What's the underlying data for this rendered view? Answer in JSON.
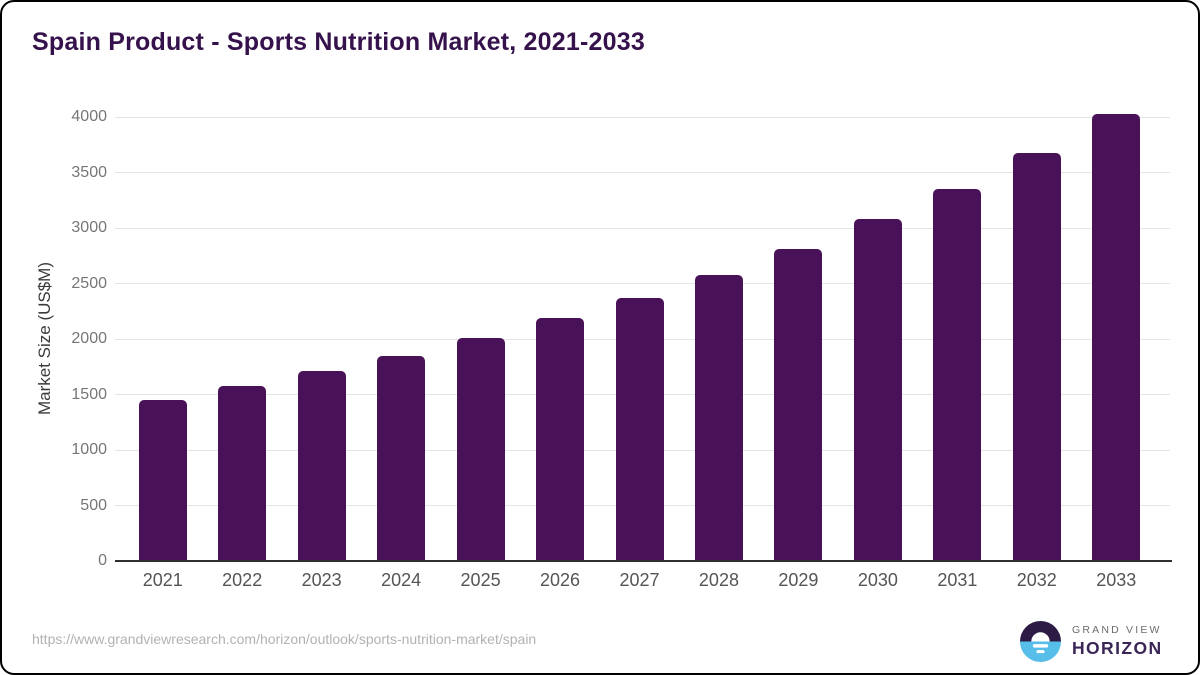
{
  "title": "Spain Product - Sports Nutrition Market, 2021-2033",
  "colors": {
    "bar": "#491157",
    "title": "#35124b",
    "gridline": "#e5e5e8",
    "axis_line": "#2f2f2f",
    "y_tick_text": "#767676",
    "x_tick_text": "#555555",
    "url_text": "#b2b2b2",
    "logo_dark_purple": "#2d1b45",
    "logo_blue": "#57bee9",
    "logo_horizon_text": "#3a2556",
    "logo_grandview_text": "#6d6d6d",
    "border": "#000000"
  },
  "chart_data": {
    "type": "bar",
    "title": "Spain Product - Sports Nutrition Market, 2021-2033",
    "xlabel": "",
    "ylabel": "Market Size (US$M)",
    "categories": [
      "2021",
      "2022",
      "2023",
      "2024",
      "2025",
      "2026",
      "2027",
      "2028",
      "2029",
      "2030",
      "2031",
      "2032",
      "2033"
    ],
    "values": [
      1450,
      1580,
      1710,
      1850,
      2010,
      2185,
      2365,
      2580,
      2815,
      3080,
      3350,
      3680,
      4030
    ],
    "ylim": [
      0,
      4000
    ],
    "ytick_step": 500,
    "grid": "horizontal",
    "legend": "none",
    "bar_color": "#491157"
  },
  "footer": {
    "source_url": "https://www.grandviewresearch.com/horizon/outlook/sports-nutrition-market/spain",
    "logo": {
      "line1": "GRAND VIEW",
      "line2": "HORIZON"
    }
  }
}
